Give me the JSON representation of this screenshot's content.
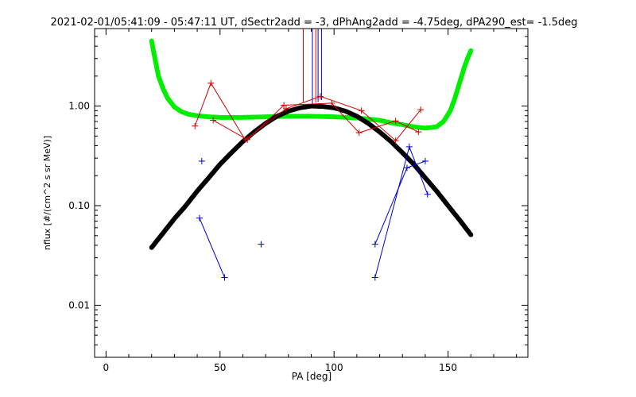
{
  "chart_data": {
    "type": "scatter",
    "title": "2021-02-01/05:41:09 - 05:47:11 UT, dSectr2add = -3, dPhAng2add = -4.75deg, dPA290_est=  -1.5deg",
    "xlabel": "PA [deg]",
    "ylabel": "nflux [#/(cm^2 s sr MeV)]",
    "xlim": [
      -5,
      185
    ],
    "ylim": [
      0.003,
      6.0
    ],
    "yscale": "log",
    "xticks": [
      0,
      50,
      100,
      150
    ],
    "xtick_labels": [
      "0",
      "50",
      "100",
      "150"
    ],
    "yticks": [
      0.01,
      0.1,
      1.0
    ],
    "ytick_labels": [
      "0.01",
      "0.10",
      "1.00"
    ],
    "grid": false,
    "legend": "none",
    "colors": {
      "red": "#cc0000",
      "blue": "#0000cc",
      "green": "#00ee00",
      "black": "#000000"
    },
    "series": [
      {
        "style": "thick-dots",
        "color": "#00ee00",
        "x": [
          20,
          21,
          22,
          23,
          25,
          27,
          30,
          33,
          36,
          40,
          45,
          50,
          60,
          70,
          80,
          90,
          100,
          110,
          120,
          125,
          130,
          135,
          140,
          145,
          148,
          151,
          153,
          155,
          157,
          158.5,
          160
        ],
        "y": [
          4.5,
          3.4,
          2.6,
          2.0,
          1.5,
          1.2,
          0.98,
          0.88,
          0.83,
          0.8,
          0.78,
          0.77,
          0.77,
          0.78,
          0.79,
          0.79,
          0.78,
          0.76,
          0.72,
          0.68,
          0.65,
          0.62,
          0.6,
          0.62,
          0.7,
          0.9,
          1.2,
          1.7,
          2.4,
          3.0,
          3.6
        ]
      },
      {
        "style": "thick-dots",
        "color": "#000000",
        "x": [
          20,
          25,
          30,
          35,
          40,
          45,
          50,
          55,
          60,
          65,
          70,
          75,
          80,
          85,
          90,
          95,
          100,
          105,
          110,
          115,
          120,
          125,
          130,
          135,
          140,
          145,
          150,
          155,
          160
        ],
        "y": [
          0.038,
          0.053,
          0.074,
          0.1,
          0.14,
          0.19,
          0.26,
          0.34,
          0.44,
          0.55,
          0.67,
          0.79,
          0.89,
          0.96,
          1.0,
          0.99,
          0.96,
          0.89,
          0.79,
          0.67,
          0.55,
          0.44,
          0.34,
          0.26,
          0.19,
          0.14,
          0.1,
          0.072,
          0.051
        ]
      },
      {
        "style": "plus-lines",
        "color": "#cc0000",
        "x": [
          39,
          46,
          61,
          79,
          94,
          112,
          127,
          138
        ],
        "y": [
          0.63,
          1.7,
          0.46,
          0.94,
          1.25,
          0.9,
          0.45,
          0.92
        ]
      },
      {
        "style": "plus-lines",
        "color": "#cc0000",
        "x": [
          47,
          62,
          78,
          99,
          111,
          127,
          137
        ],
        "y": [
          0.72,
          0.46,
          1.02,
          1.07,
          0.54,
          0.71,
          0.55
        ]
      },
      {
        "style": "plus-lines",
        "color": "#0000cc",
        "x": [
          41,
          52
        ],
        "y": [
          0.075,
          0.019
        ]
      },
      {
        "style": "plus-lines",
        "color": "#0000cc",
        "x": [
          118,
          133,
          141
        ],
        "y": [
          0.019,
          0.39,
          0.13
        ]
      },
      {
        "style": "plus-lines",
        "color": "#0000cc",
        "x": [
          118,
          132,
          140
        ],
        "y": [
          0.041,
          0.24,
          0.28
        ]
      },
      {
        "style": "plus-points",
        "color": "#0000cc",
        "x": [
          42,
          68
        ],
        "y": [
          0.28,
          0.041
        ]
      }
    ],
    "vertical_spikes": [
      {
        "x": 86.5,
        "y_from": 1.1,
        "color": "#cc0000"
      },
      {
        "x": 90.5,
        "y_from": 1.05,
        "color": "#0000cc"
      },
      {
        "x": 92.0,
        "y_from": 1.08,
        "color": "#cc0000"
      },
      {
        "x": 93.0,
        "y_from": 1.1,
        "color": "#0000cc"
      },
      {
        "x": 94.5,
        "y_from": 1.15,
        "color": "#0000cc"
      }
    ]
  }
}
